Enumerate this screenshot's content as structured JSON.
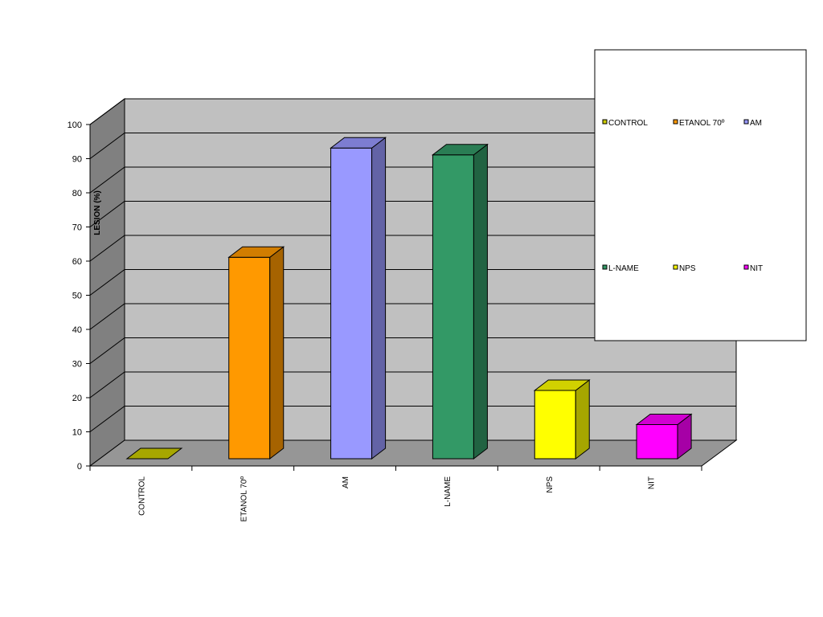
{
  "chart_data": {
    "type": "bar",
    "title": "",
    "xlabel": "",
    "ylabel": "LESION (%)",
    "ylim": [
      0,
      100
    ],
    "yticks": [
      0,
      10,
      20,
      30,
      40,
      50,
      60,
      70,
      80,
      90,
      100
    ],
    "categories": [
      "CONTROL",
      "ETANOL 70º",
      "AM",
      "L-NAME",
      "NPS",
      "NIT"
    ],
    "values": [
      0,
      59,
      91,
      89,
      20,
      10
    ],
    "colors": [
      "#cccc00",
      "#ff9900",
      "#9999ff",
      "#339966",
      "#ffff00",
      "#ff00ff"
    ],
    "grid": true,
    "three_d": true,
    "legend": {
      "position": "top-right",
      "entries": [
        "CONTROL",
        "ETANOL 70º",
        "AM",
        "L-NAME",
        "NPS",
        "NIT"
      ]
    }
  }
}
